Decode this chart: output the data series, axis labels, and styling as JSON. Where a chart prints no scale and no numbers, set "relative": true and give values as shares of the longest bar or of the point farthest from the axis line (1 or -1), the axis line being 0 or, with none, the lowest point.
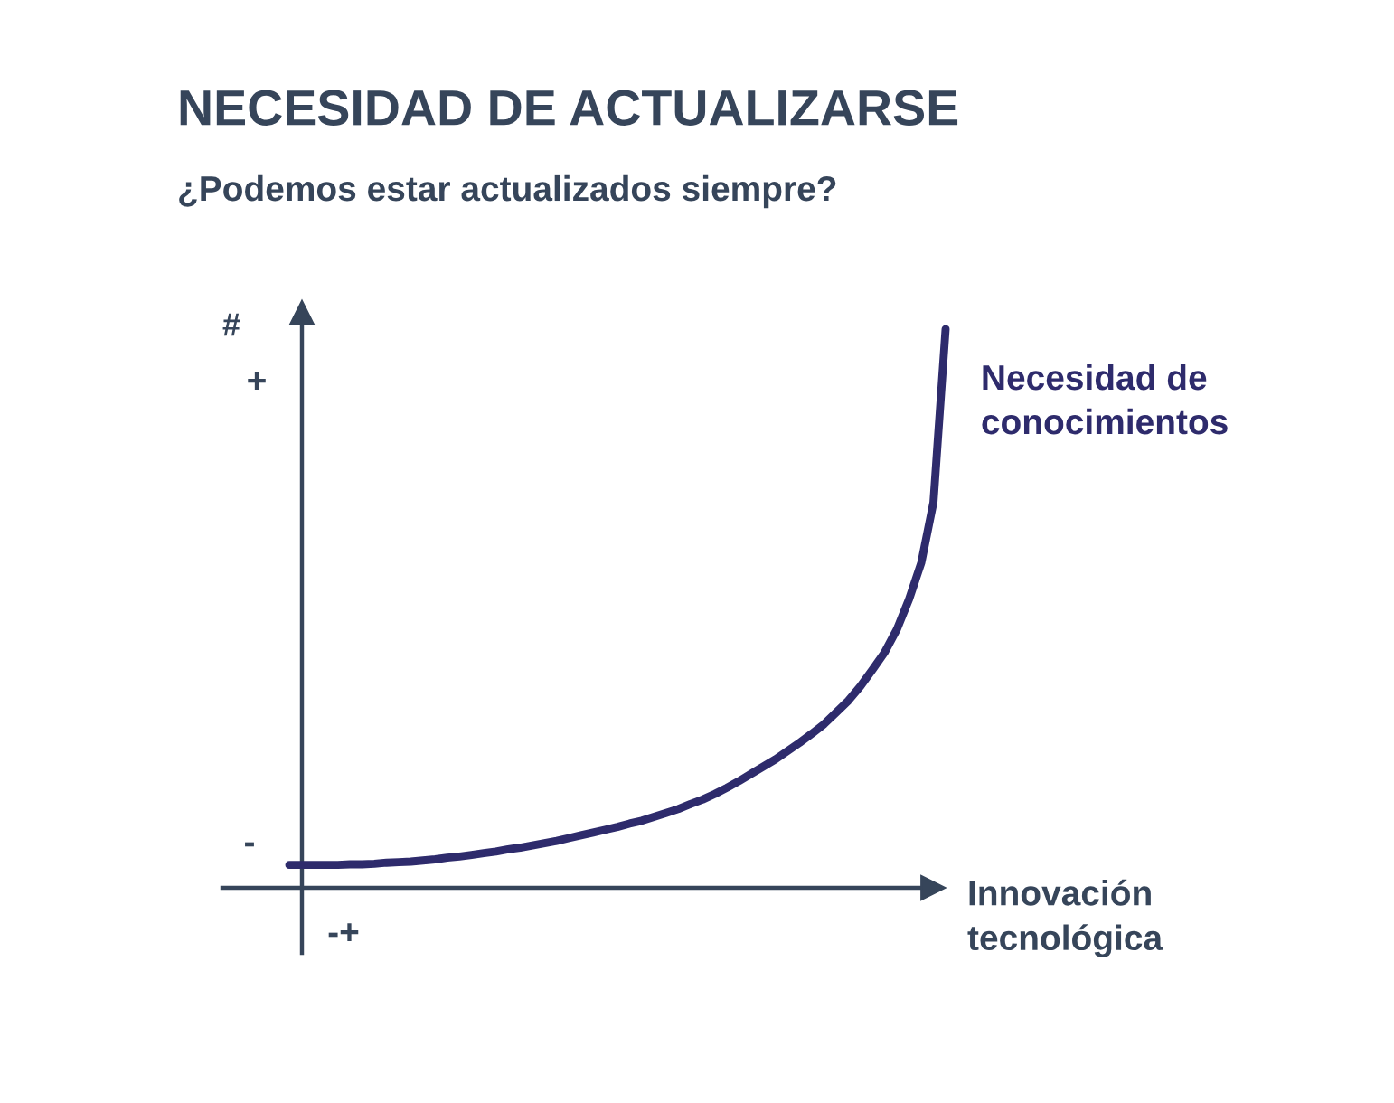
{
  "chart_data": {
    "type": "line",
    "title": "NECESIDAD DE ACTUALIZARSE",
    "subtitle": "¿Podemos estar actualizados siempre?",
    "xlabel": "Innovación\ntecnológica",
    "ylabel": "#",
    "annotations": [
      "+",
      "-",
      "-+"
    ],
    "relative": true,
    "line_style": "solid",
    "categories": [
      null,
      null,
      null,
      null,
      null,
      null,
      null,
      null,
      null,
      null,
      null,
      null,
      null,
      null,
      null,
      null,
      null,
      null,
      null,
      null,
      null,
      null,
      null,
      null,
      null,
      null,
      null,
      null,
      null,
      null,
      null,
      null,
      null,
      null,
      null,
      null,
      null,
      null,
      null,
      null,
      null,
      null,
      null,
      null,
      null,
      null,
      null,
      null,
      null,
      null,
      null,
      null,
      null,
      null,
      null
    ],
    "series": [
      {
        "name": "Necesidad de\nconocimientos",
        "color": "#2e2b6c",
        "values": [
          0.041,
          0.041,
          0.041,
          0.041,
          0.041,
          0.042,
          0.042,
          0.043,
          0.045,
          0.046,
          0.047,
          0.049,
          0.051,
          0.054,
          0.056,
          0.059,
          0.062,
          0.065,
          0.069,
          0.072,
          0.076,
          0.08,
          0.084,
          0.089,
          0.094,
          0.099,
          0.104,
          0.109,
          0.115,
          0.12,
          0.127,
          0.134,
          0.141,
          0.15,
          0.158,
          0.168,
          0.179,
          0.191,
          0.204,
          0.217,
          0.23,
          0.245,
          0.26,
          0.276,
          0.293,
          0.314,
          0.335,
          0.361,
          0.391,
          0.422,
          0.463,
          0.517,
          0.582,
          0.69,
          1.0
        ]
      }
    ]
  }
}
